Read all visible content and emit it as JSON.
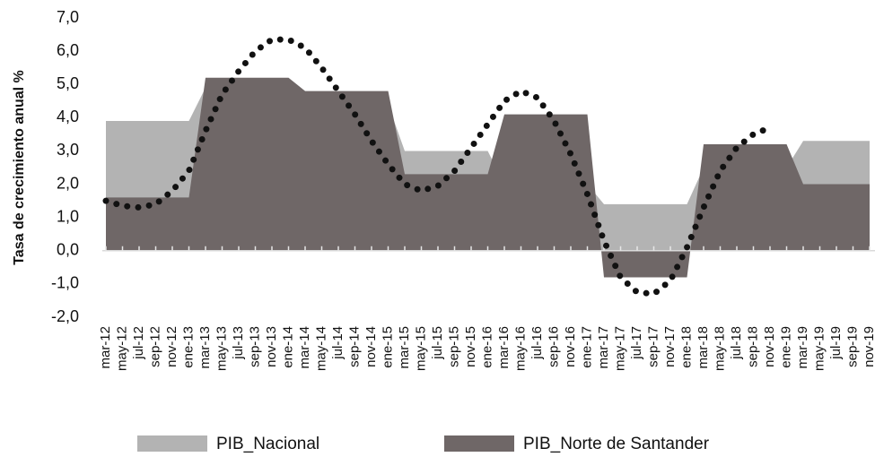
{
  "chart_data": {
    "type": "area",
    "ylabel": "Tasa de crecimiento anual %",
    "categories": [
      "mar-12",
      "may-12",
      "jul-12",
      "sep-12",
      "nov-12",
      "ene-13",
      "mar-13",
      "may-13",
      "jul-13",
      "sep-13",
      "nov-13",
      "ene-14",
      "mar-14",
      "may-14",
      "jul-14",
      "sep-14",
      "nov-14",
      "ene-15",
      "mar-15",
      "may-15",
      "jul-15",
      "sep-15",
      "nov-15",
      "ene-16",
      "mar-16",
      "may-16",
      "jul-16",
      "sep-16",
      "nov-16",
      "ene-17",
      "mar-17",
      "may-17",
      "jul-17",
      "sep-17",
      "nov-17",
      "ene-18",
      "mar-18",
      "may-18",
      "jul-18",
      "sep-18",
      "nov-18",
      "ene-19",
      "mar-19",
      "may-19",
      "jul-19",
      "sep-19",
      "nov-19"
    ],
    "series": [
      {
        "name": "PIB_Nacional",
        "color": "#b3b3b3",
        "style": "area",
        "values": [
          3.9,
          3.9,
          3.9,
          3.9,
          3.9,
          3.9,
          4.9,
          4.9,
          4.9,
          4.9,
          4.9,
          4.9,
          4.4,
          4.4,
          4.4,
          4.4,
          4.4,
          4.4,
          3.0,
          3.0,
          3.0,
          3.0,
          3.0,
          3.0,
          2.0,
          2.0,
          2.0,
          2.0,
          2.0,
          2.0,
          1.4,
          1.4,
          1.4,
          1.4,
          1.4,
          1.4,
          2.5,
          2.5,
          2.5,
          2.5,
          2.5,
          2.5,
          3.3,
          3.3,
          3.3,
          3.3,
          3.3
        ]
      },
      {
        "name": "PIB_Norte de Santander",
        "color": "#6f6767",
        "style": "area",
        "values": [
          1.6,
          1.6,
          1.6,
          1.6,
          1.6,
          1.6,
          5.2,
          5.2,
          5.2,
          5.2,
          5.2,
          5.2,
          4.8,
          4.8,
          4.8,
          4.8,
          4.8,
          4.8,
          2.3,
          2.3,
          2.3,
          2.3,
          2.3,
          2.3,
          4.1,
          4.1,
          4.1,
          4.1,
          4.1,
          4.1,
          -0.8,
          -0.8,
          -0.8,
          -0.8,
          -0.8,
          -0.8,
          3.2,
          3.2,
          3.2,
          3.2,
          3.2,
          3.2,
          2.0,
          2.0,
          2.0,
          2.0,
          2.0
        ]
      },
      {
        "color": "#111111",
        "style": "dotted",
        "values": [
          1.5,
          1.35,
          1.3,
          1.4,
          1.8,
          2.4,
          3.6,
          4.7,
          5.4,
          6.0,
          6.35,
          6.35,
          6.1,
          5.5,
          4.8,
          4.1,
          3.3,
          2.6,
          2.0,
          1.8,
          1.95,
          2.4,
          3.1,
          3.8,
          4.5,
          4.8,
          4.6,
          3.9,
          2.9,
          1.7,
          0.3,
          -0.8,
          -1.25,
          -1.3,
          -0.9,
          0.1,
          1.3,
          2.4,
          3.1,
          3.5,
          3.7,
          null,
          null,
          null,
          null,
          null,
          null
        ]
      }
    ],
    "ylim": [
      -2,
      7
    ],
    "yticks": [
      {
        "value": -2,
        "label": "-2,0"
      },
      {
        "value": -1,
        "label": "-1,0"
      },
      {
        "value": 0,
        "label": "0,0"
      },
      {
        "value": 1,
        "label": "1,0"
      },
      {
        "value": 2,
        "label": "2,0"
      },
      {
        "value": 3,
        "label": "3,0"
      },
      {
        "value": 4,
        "label": "4,0"
      },
      {
        "value": 5,
        "label": "5,0"
      },
      {
        "value": 6,
        "label": "6,0"
      },
      {
        "value": 7,
        "label": "7,0"
      }
    ],
    "grid": false,
    "legend": "bottom"
  }
}
